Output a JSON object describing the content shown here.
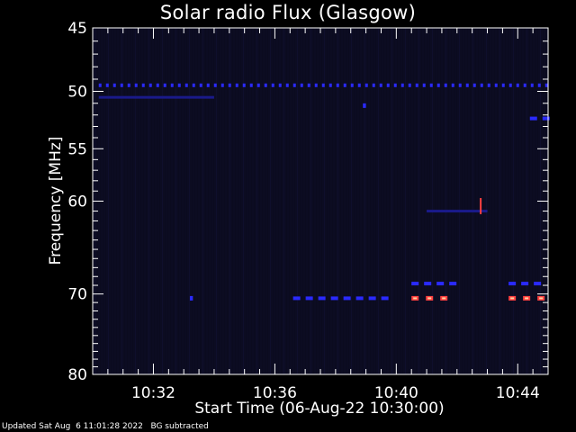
{
  "chart_data": {
    "type": "heatmap",
    "title": "Solar radio Flux (Glasgow)",
    "ylabel": "Frequency [MHz]",
    "xlabel": "Start Time (06-Aug-22 10:30:00)",
    "x_ticks": [
      "10:32",
      "10:36",
      "10:40",
      "10:44"
    ],
    "x_tick_minutes": [
      2,
      6,
      10,
      14
    ],
    "x_range_minutes": [
      0,
      15
    ],
    "y_ticks": [
      45,
      50,
      55,
      60,
      70,
      80
    ],
    "y_range_mhz": [
      45,
      80
    ],
    "y_scale": "log",
    "background_color": "#0c0c22",
    "colors": {
      "weak": "#1a1a8a",
      "moderate": "#2a2aff",
      "strong": "#ff4040",
      "peak": "#ffd0a0"
    },
    "features": [
      {
        "kind": "band",
        "freq_mhz": 49.5,
        "t_start": 0.2,
        "t_end": 15.0,
        "intensity": "moderate"
      },
      {
        "kind": "band",
        "freq_mhz": 50.5,
        "t_start": 0.2,
        "t_end": 4.0,
        "intensity": "weak"
      },
      {
        "kind": "band",
        "freq_mhz": 52.3,
        "t_start": 14.4,
        "t_end": 15.0,
        "intensity": "moderate"
      },
      {
        "kind": "band",
        "freq_mhz": 61.0,
        "t_start": 11.0,
        "t_end": 13.0,
        "intensity": "weak"
      },
      {
        "kind": "band",
        "freq_mhz": 68.8,
        "t_start": 10.5,
        "t_end": 11.9,
        "intensity": "moderate"
      },
      {
        "kind": "band",
        "freq_mhz": 68.8,
        "t_start": 13.7,
        "t_end": 14.9,
        "intensity": "moderate"
      },
      {
        "kind": "band",
        "freq_mhz": 70.5,
        "t_start": 6.6,
        "t_end": 9.8,
        "intensity": "moderate"
      },
      {
        "kind": "band",
        "freq_mhz": 70.5,
        "t_start": 10.5,
        "t_end": 11.9,
        "intensity": "strong"
      },
      {
        "kind": "band",
        "freq_mhz": 70.5,
        "t_start": 13.7,
        "t_end": 14.9,
        "intensity": "strong"
      },
      {
        "kind": "spot",
        "freq_mhz": 70.5,
        "t_start": 3.2,
        "t_end": 3.3,
        "intensity": "moderate"
      },
      {
        "kind": "spot",
        "freq_mhz": 51.2,
        "t_start": 8.9,
        "t_end": 9.0,
        "intensity": "moderate"
      },
      {
        "kind": "spike",
        "freq_mhz": 60.5,
        "t_start": 12.75,
        "t_end": 12.8,
        "intensity": "strong"
      }
    ]
  },
  "footer": {
    "updated": "Updated Sat Aug  6 11:01:28 2022",
    "bg_note": "BG subtracted"
  }
}
